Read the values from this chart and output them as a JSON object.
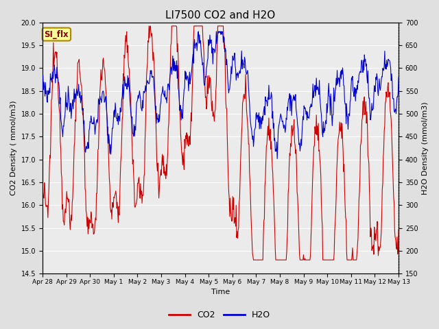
{
  "title": "LI7500 CO2 and H2O",
  "xlabel": "Time",
  "ylabel_left": "CO2 Density ( mmol/m3)",
  "ylabel_right": "H2O Density (mmol/m3)",
  "ylim_left": [
    14.5,
    20.0
  ],
  "ylim_right": [
    150,
    700
  ],
  "yticks_left": [
    14.5,
    15.0,
    15.5,
    16.0,
    16.5,
    17.0,
    17.5,
    18.0,
    18.5,
    19.0,
    19.5,
    20.0
  ],
  "yticks_right": [
    150,
    200,
    250,
    300,
    350,
    400,
    450,
    500,
    550,
    600,
    650,
    700
  ],
  "xtick_labels": [
    "Apr 28",
    "Apr 29",
    "Apr 30",
    "May 1",
    "May 2",
    "May 3",
    "May 4",
    "May 5",
    "May 6",
    "May 7",
    "May 8",
    "May 9",
    "May 10",
    "May 11",
    "May 12",
    "May 13"
  ],
  "co2_color": "#cc0000",
  "h2o_color": "#0000cc",
  "bg_color": "#e0e0e0",
  "plot_bg_color": "#ebebeb",
  "grid_color": "#ffffff",
  "annotation_text": "SI_flx",
  "annotation_bg": "#ffff99",
  "annotation_border": "#aa8800",
  "annotation_text_color": "#880000",
  "legend_co2": "CO2",
  "legend_h2o": "H2O",
  "title_fontsize": 11,
  "axis_label_fontsize": 8,
  "tick_fontsize": 7,
  "legend_fontsize": 9
}
